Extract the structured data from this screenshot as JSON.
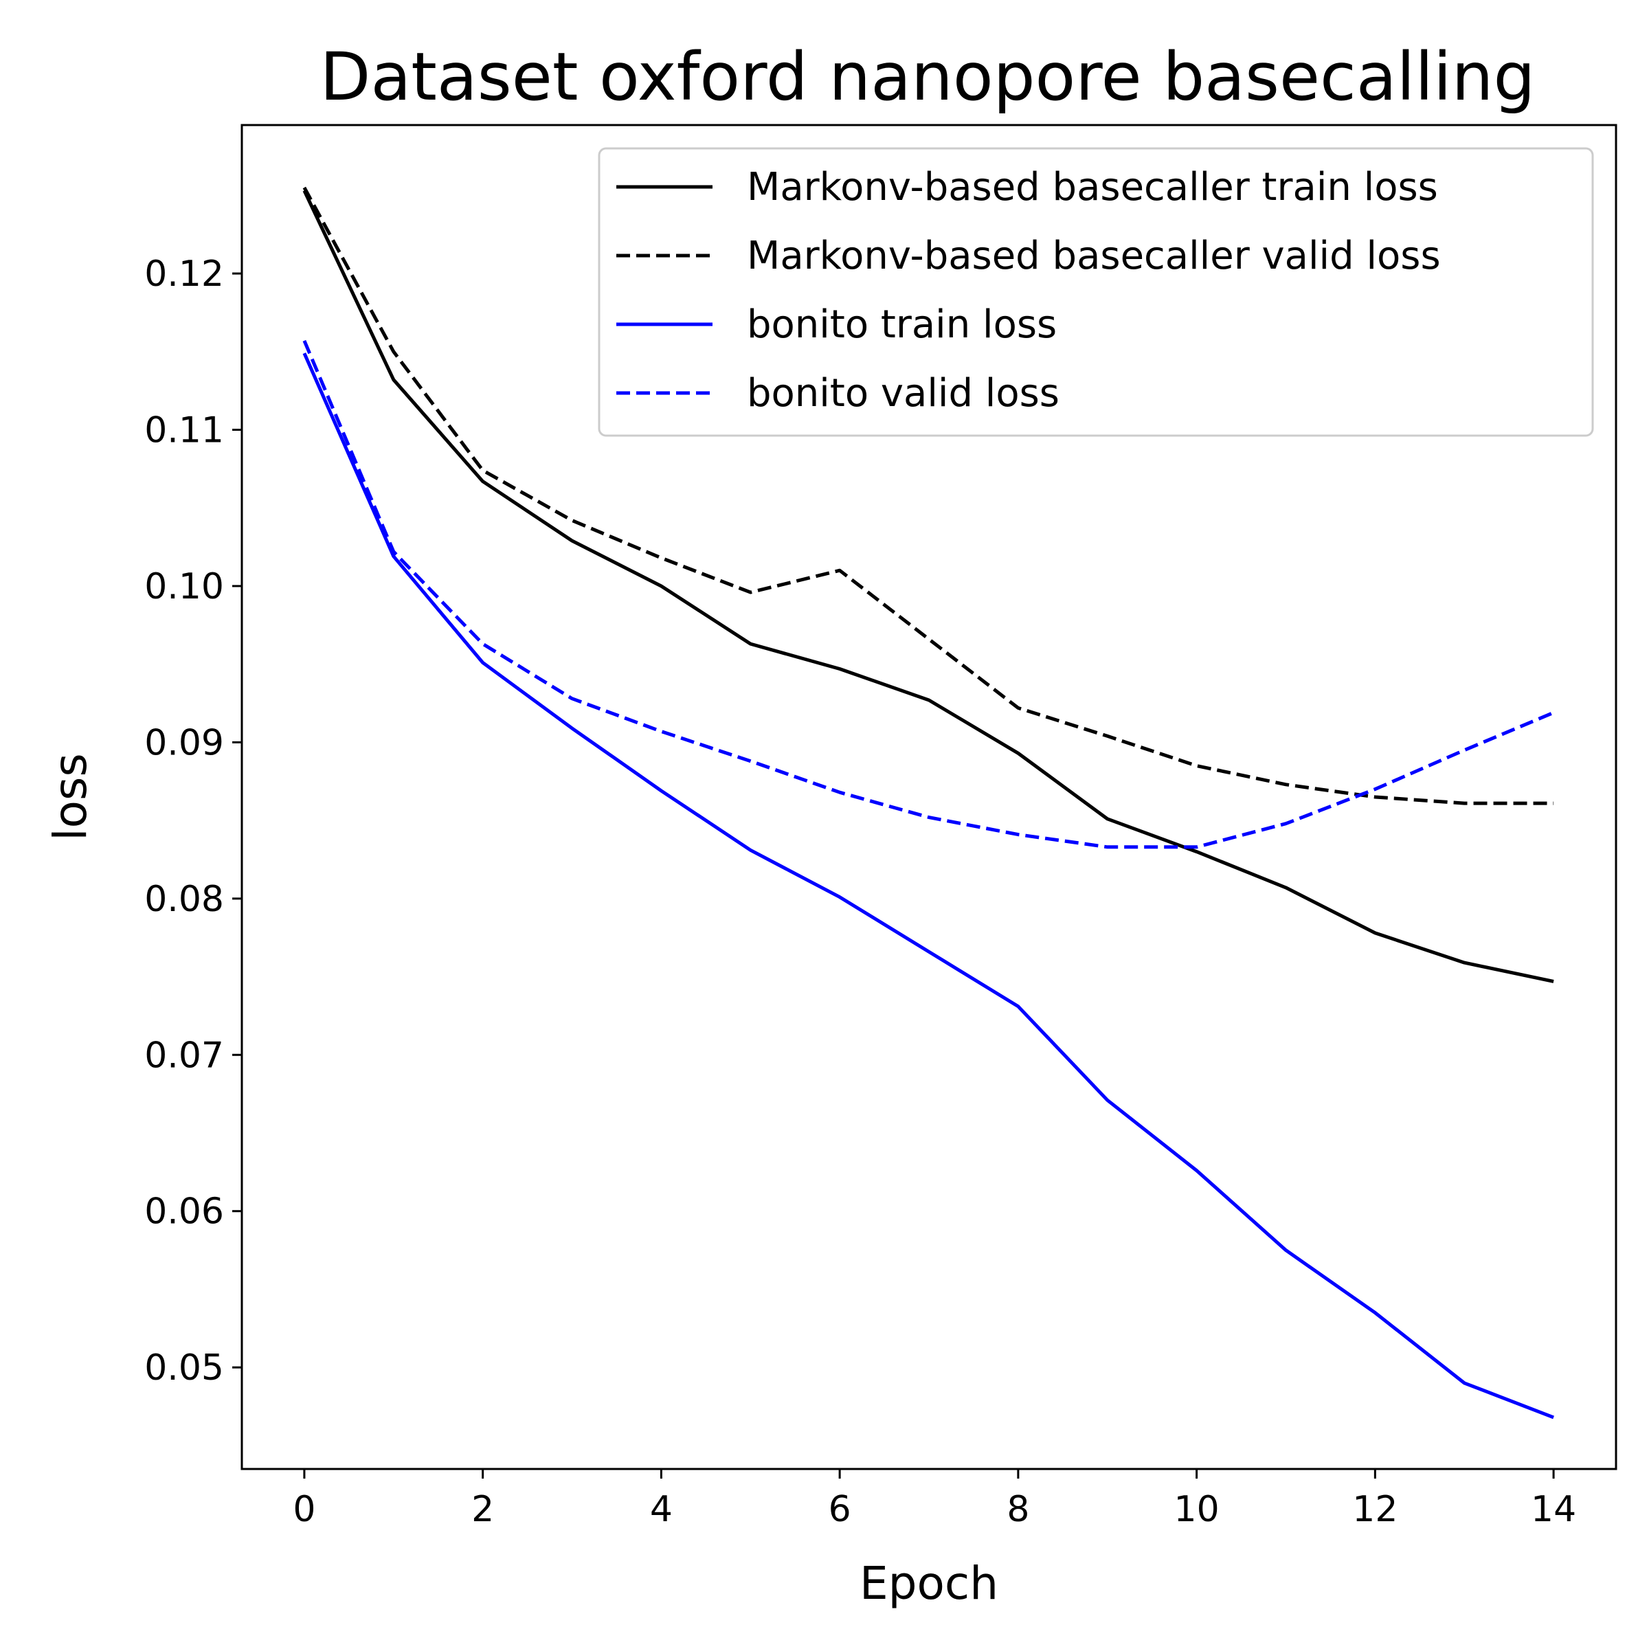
{
  "chart_data": {
    "type": "line",
    "title": "Dataset oxford nanopore basecalling",
    "xlabel": "Epoch",
    "ylabel": "loss",
    "xlim": [
      -0.7,
      14.7
    ],
    "ylim": [
      0.0435,
      0.1295
    ],
    "xticks": [
      0,
      2,
      4,
      6,
      8,
      10,
      12,
      14
    ],
    "yticks": [
      0.05,
      0.06,
      0.07,
      0.08,
      0.09,
      0.1,
      0.11,
      0.12
    ],
    "xtick_labels": [
      "0",
      "2",
      "4",
      "6",
      "8",
      "10",
      "12",
      "14"
    ],
    "ytick_labels": [
      "0.05",
      "0.06",
      "0.07",
      "0.08",
      "0.09",
      "0.10",
      "0.11",
      "0.12"
    ],
    "grid": false,
    "legend_position": "top-right",
    "x": [
      0,
      1,
      2,
      3,
      4,
      5,
      6,
      7,
      8,
      9,
      10,
      11,
      12,
      13,
      14
    ],
    "series": [
      {
        "name": "Markonv-based basecaller train loss",
        "color": "#000000",
        "dash": "solid",
        "values": [
          0.1253,
          0.1132,
          0.1067,
          0.1029,
          0.1,
          0.0963,
          0.0947,
          0.0927,
          0.0893,
          0.0851,
          0.083,
          0.0807,
          0.0778,
          0.0759,
          0.0747
        ]
      },
      {
        "name": "Markonv-based basecaller valid loss",
        "color": "#000000",
        "dash": "dashed",
        "values": [
          0.1255,
          0.115,
          0.1074,
          0.1042,
          0.1018,
          0.0996,
          0.101,
          0.0966,
          0.0922,
          0.0904,
          0.0885,
          0.0873,
          0.0865,
          0.0861,
          0.0861
        ]
      },
      {
        "name": "bonito train loss",
        "color": "#0000ff",
        "dash": "solid",
        "values": [
          0.1149,
          0.1019,
          0.0951,
          0.0909,
          0.0869,
          0.0831,
          0.0801,
          0.0766,
          0.0731,
          0.0671,
          0.0626,
          0.0575,
          0.0535,
          0.049,
          0.0468
        ]
      },
      {
        "name": "bonito valid loss",
        "color": "#0000ff",
        "dash": "dashed",
        "values": [
          0.1157,
          0.1022,
          0.0963,
          0.0928,
          0.0907,
          0.0888,
          0.0868,
          0.0852,
          0.0841,
          0.0833,
          0.0833,
          0.0848,
          0.087,
          0.0895,
          0.0919
        ]
      }
    ]
  }
}
